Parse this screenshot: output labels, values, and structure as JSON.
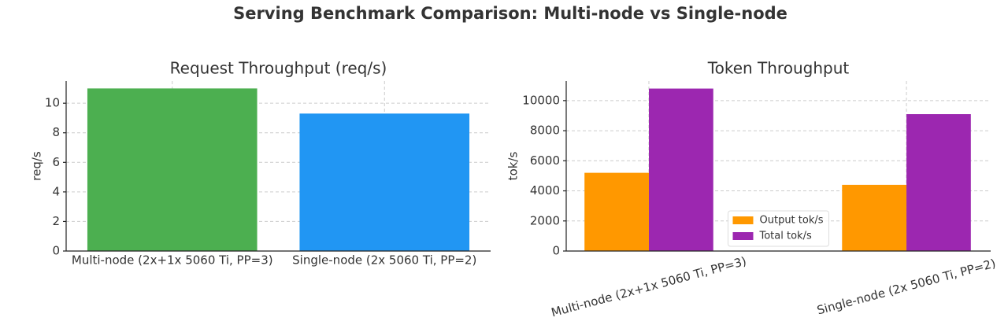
{
  "title": "Serving Benchmark Comparison: Multi-node vs Single-node",
  "chart_data": [
    {
      "type": "bar",
      "title": "Request Throughput (req/s)",
      "ylabel": "req/s",
      "categories": [
        "Multi-node (2x+1x 5060 Ti, PP=3)",
        "Single-node (2x 5060 Ti, PP=2)"
      ],
      "values": [
        11.0,
        9.3
      ],
      "colors": [
        "#4caf50",
        "#2196f3"
      ],
      "ylim": [
        0,
        11.5
      ],
      "yticks": [
        0,
        2,
        4,
        6,
        8,
        10
      ],
      "grid": true
    },
    {
      "type": "grouped_bar",
      "title": "Token Throughput",
      "ylabel": "tok/s",
      "categories": [
        "Multi-node (2x+1x 5060 Ti, PP=3)",
        "Single-node (2x 5060 Ti, PP=2)"
      ],
      "series": [
        {
          "name": "Output tok/s",
          "color": "#ff9800",
          "values": [
            5200,
            4400
          ]
        },
        {
          "name": "Total tok/s",
          "color": "#9c27b0",
          "values": [
            10800,
            9100
          ]
        }
      ],
      "ylim": [
        0,
        11300
      ],
      "yticks": [
        0,
        2000,
        4000,
        6000,
        8000,
        10000
      ],
      "grid": true,
      "legend": "lower center",
      "xtick_rotation": 15
    }
  ]
}
